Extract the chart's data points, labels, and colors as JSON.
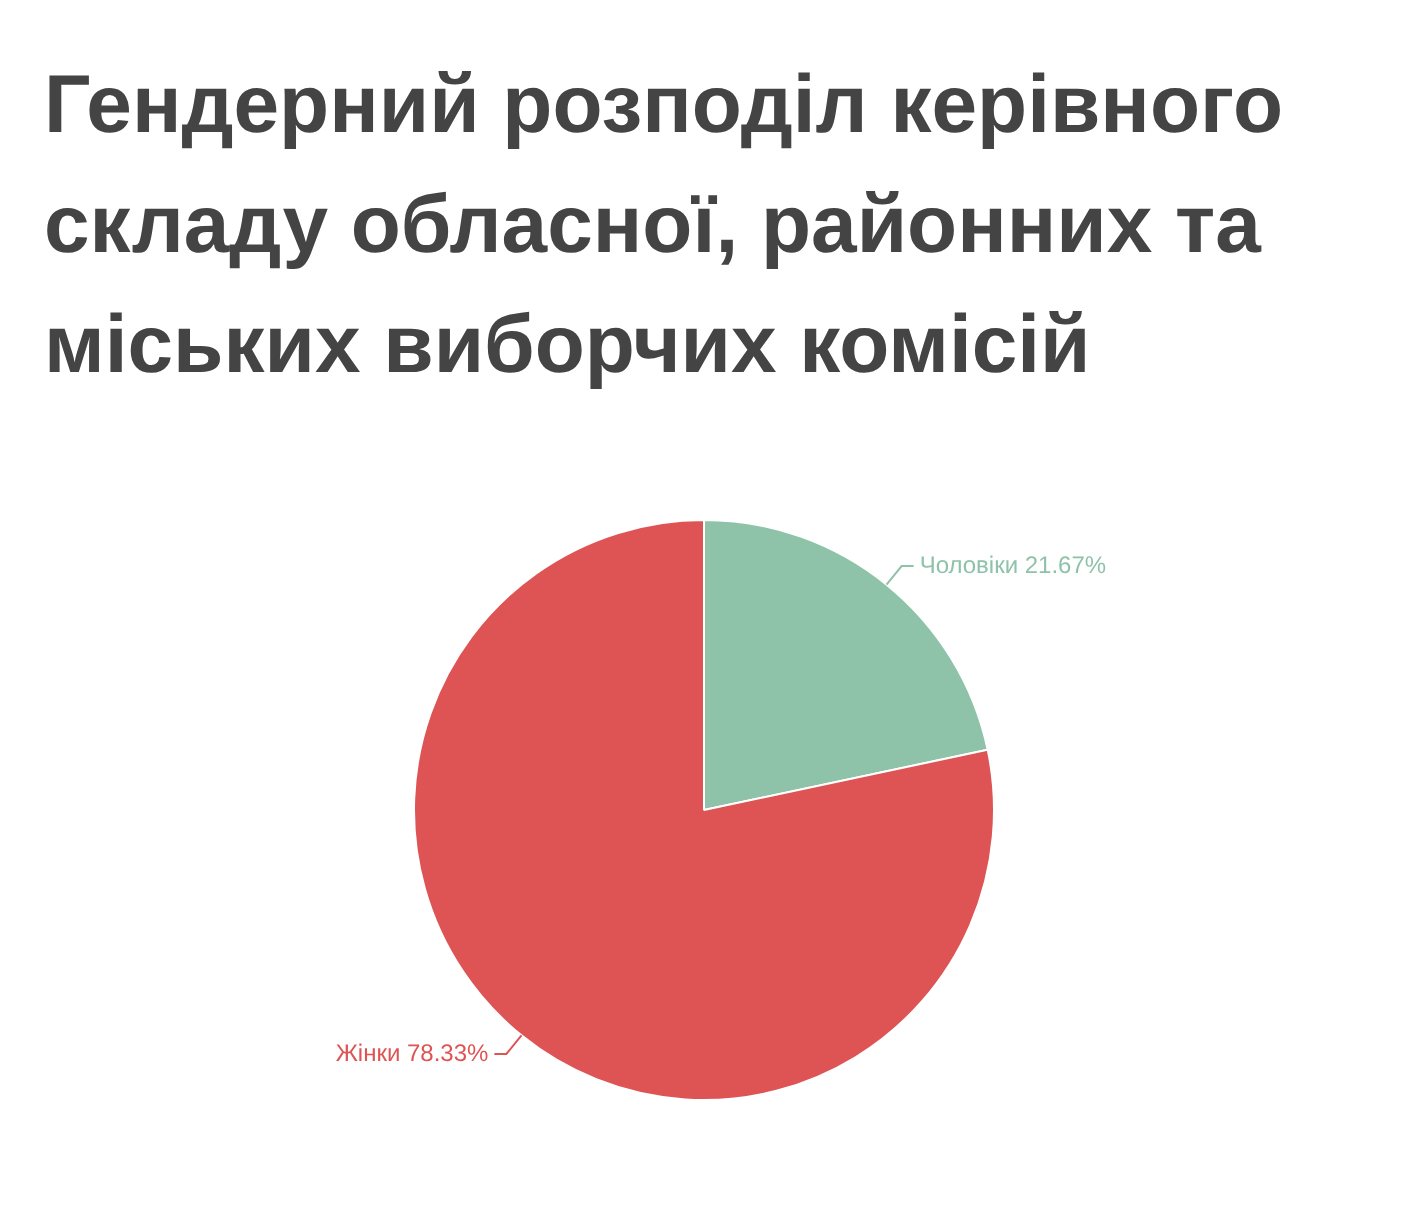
{
  "chart_data": {
    "type": "pie",
    "title": "Гендерний розподіл керівного складу обласної, районних та міських виборчих комісій",
    "categories": [
      "Чоловіки",
      "Жінки"
    ],
    "values": [
      21.67,
      78.33
    ],
    "colors": [
      "#8fc3a9",
      "#de5454"
    ],
    "value_labels": [
      "21.67%",
      "78.33%"
    ],
    "legend": false
  }
}
